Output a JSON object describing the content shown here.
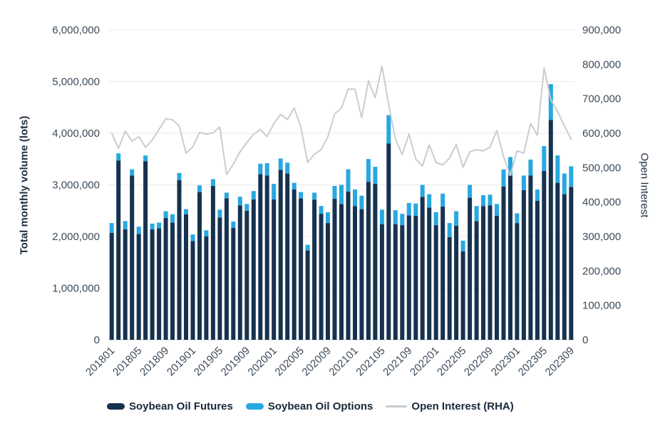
{
  "page": {
    "background": "#ffffff"
  },
  "labels": {
    "left_axis_title": "Total monthly volume (lots)",
    "right_axis_title": "Open Interest",
    "legend_futures": "Soybean Oil Futures",
    "legend_options": "Soybean Oil Options",
    "legend_open_interest": "Open Interest (RHA)"
  },
  "colors": {
    "futures_bar": "#16324f",
    "options_bar": "#29a8e0",
    "open_interest_line": "#c8cdd2",
    "grid_line": "#e8eaec",
    "axis_base_line": "#dcdfe2",
    "tick_text": "#3c4a59",
    "title_text": "#21303f"
  },
  "chart_data": {
    "type": "bar",
    "subtype": "stacked bars with overlay line, dual y-axis",
    "title": "",
    "legend_position": "bottom",
    "grid": "horizontal gridlines at left-axis steps",
    "x_tick_every": 4,
    "left_axis": {
      "label": "Total monthly volume (lots)",
      "min": 0,
      "max": 6000000,
      "step": 1000000
    },
    "right_axis": {
      "label": "Open Interest",
      "min": 0,
      "max": 900000,
      "step": 100000
    },
    "categories": [
      "201801",
      "201802",
      "201803",
      "201804",
      "201805",
      "201806",
      "201807",
      "201808",
      "201809",
      "201810",
      "201811",
      "201812",
      "201901",
      "201902",
      "201903",
      "201904",
      "201905",
      "201906",
      "201907",
      "201908",
      "201909",
      "201910",
      "201911",
      "201912",
      "202001",
      "202002",
      "202003",
      "202004",
      "202005",
      "202006",
      "202007",
      "202008",
      "202009",
      "202010",
      "202011",
      "202012",
      "202101",
      "202102",
      "202103",
      "202104",
      "202105",
      "202106",
      "202107",
      "202108",
      "202109",
      "202110",
      "202111",
      "202112",
      "202201",
      "202202",
      "202203",
      "202204",
      "202205",
      "202206",
      "202207",
      "202208",
      "202209",
      "202210",
      "202211",
      "202212",
      "202301",
      "202302",
      "202303",
      "202304",
      "202305",
      "202306",
      "202307",
      "202308",
      "202309"
    ],
    "series": [
      {
        "name": "Soybean Oil Futures",
        "type": "bar",
        "stack": "volume",
        "axis": "left",
        "color": "#16324f",
        "values": [
          2070000,
          3470000,
          2140000,
          3180000,
          2050000,
          3460000,
          2140000,
          2160000,
          2360000,
          2270000,
          3090000,
          2430000,
          1910000,
          2860000,
          2000000,
          2980000,
          2370000,
          2740000,
          2170000,
          2600000,
          2500000,
          2720000,
          3210000,
          3180000,
          2720000,
          3290000,
          3220000,
          2910000,
          2740000,
          1730000,
          2710000,
          2440000,
          2260000,
          2730000,
          2630000,
          2870000,
          2590000,
          2530000,
          3060000,
          3020000,
          2240000,
          3800000,
          2240000,
          2220000,
          2410000,
          2400000,
          2770000,
          2560000,
          2220000,
          2580000,
          1990000,
          2210000,
          1710000,
          2750000,
          2300000,
          2590000,
          2600000,
          2400000,
          2970000,
          3180000,
          2260000,
          2900000,
          3180000,
          2690000,
          3270000,
          4260000,
          3040000,
          2820000,
          2960000
        ]
      },
      {
        "name": "Soybean Oil Options",
        "type": "bar",
        "stack": "volume",
        "axis": "left",
        "color": "#29a8e0",
        "values": [
          190000,
          140000,
          160000,
          120000,
          140000,
          110000,
          110000,
          110000,
          130000,
          160000,
          140000,
          100000,
          130000,
          130000,
          120000,
          130000,
          150000,
          110000,
          120000,
          170000,
          130000,
          160000,
          200000,
          240000,
          300000,
          220000,
          210000,
          130000,
          120000,
          110000,
          140000,
          150000,
          210000,
          250000,
          370000,
          430000,
          320000,
          260000,
          440000,
          330000,
          280000,
          550000,
          270000,
          220000,
          240000,
          240000,
          230000,
          260000,
          250000,
          250000,
          270000,
          280000,
          210000,
          250000,
          290000,
          210000,
          210000,
          230000,
          330000,
          360000,
          190000,
          280000,
          310000,
          220000,
          480000,
          690000,
          530000,
          400000,
          400000
        ]
      },
      {
        "name": "Open Interest (RHA)",
        "type": "line",
        "axis": "right",
        "color": "#c8cdd2",
        "values": [
          600000,
          556000,
          606000,
          577000,
          590000,
          559000,
          580000,
          611000,
          642000,
          639000,
          621000,
          542000,
          560000,
          602000,
          597000,
          601000,
          618000,
          480000,
          510000,
          546000,
          573000,
          597000,
          611000,
          590000,
          628000,
          655000,
          640000,
          673000,
          618000,
          515000,
          539000,
          552000,
          590000,
          656000,
          673000,
          728000,
          728000,
          645000,
          752000,
          703000,
          795000,
          683000,
          583000,
          538000,
          598000,
          525000,
          505000,
          566000,
          515000,
          508000,
          528000,
          567000,
          501000,
          546000,
          552000,
          549000,
          559000,
          608000,
          532000,
          477000,
          549000,
          542000,
          628000,
          594000,
          790000,
          697000,
          663000,
          621000,
          583000
        ]
      }
    ]
  }
}
